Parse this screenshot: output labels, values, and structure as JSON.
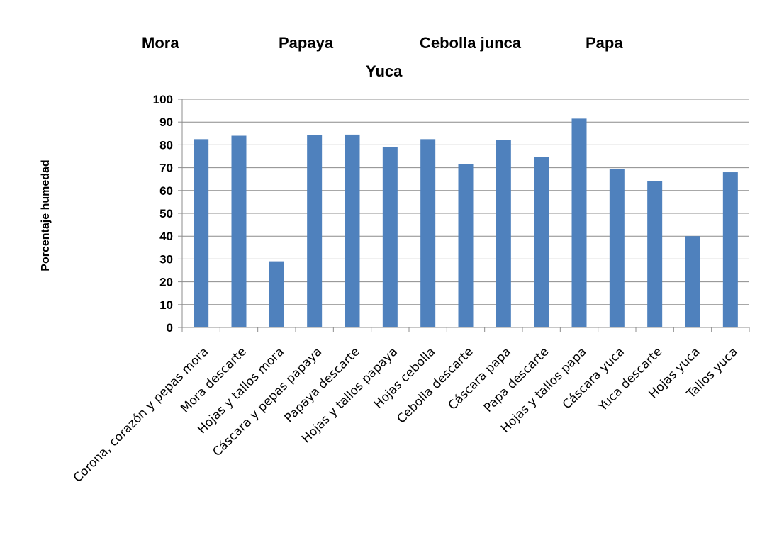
{
  "chart_data": {
    "type": "bar",
    "title_groups": [
      "Mora",
      "Papaya",
      "Cebolla junca",
      "Papa",
      "Yuca"
    ],
    "ylabel": "Porcentaje  humedad",
    "xlabel": "",
    "ylim": [
      0,
      100
    ],
    "yticks": [
      "0",
      "10",
      "20",
      "30",
      "40",
      "50",
      "60",
      "70",
      "80",
      "90",
      "100"
    ],
    "grid": true,
    "bar_color": "#4f81bd",
    "categories": [
      "Corona, corazón y pepas mora",
      "Mora descarte",
      "Hojas y tallos mora",
      "Cáscara y pepas papaya",
      "Papaya descarte",
      "Hojas y tallos papaya",
      "Hojas cebolla",
      "Cebolla descarte",
      "Cáscara papa",
      "Papa descarte",
      "Hojas y tallos papa",
      "Cáscara yuca",
      "Yuca descarte",
      "Hojas yuca",
      "Tallos yuca"
    ],
    "values": [
      82.5,
      84,
      29,
      84.2,
      84.5,
      79,
      82.5,
      71.5,
      82.2,
      74.8,
      91.5,
      69.5,
      64,
      40,
      68
    ]
  }
}
